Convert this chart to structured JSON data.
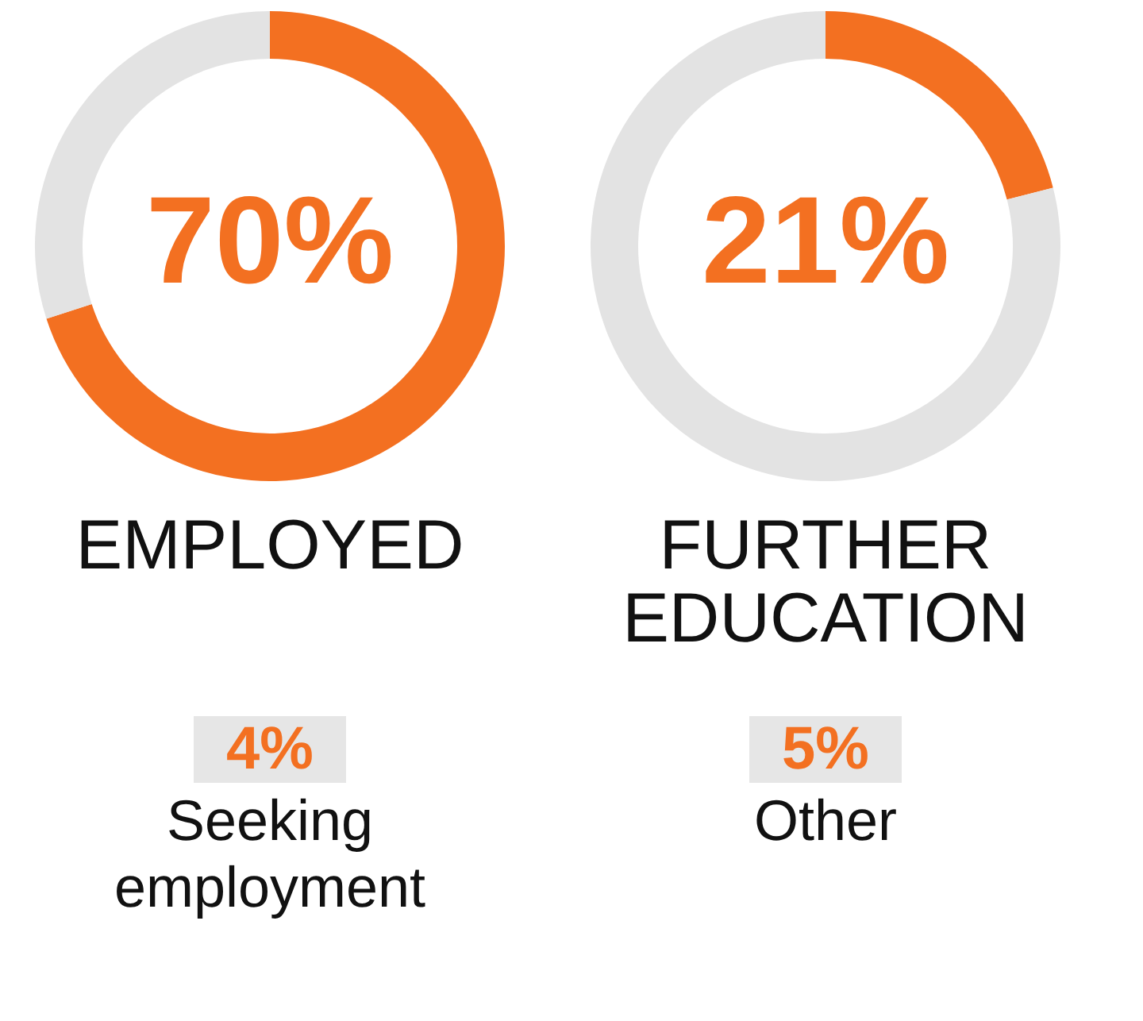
{
  "chart_data": [
    {
      "type": "donut",
      "title": "EMPLOYED",
      "categories": [
        null,
        null
      ],
      "values": [
        70,
        30
      ],
      "colors": [
        "#f37021",
        "#e3e3e3"
      ],
      "value_labels": [
        "70%",
        null
      ]
    },
    {
      "type": "donut",
      "title": "FURTHER EDUCATION",
      "categories": [
        null,
        null
      ],
      "values": [
        21,
        79
      ],
      "colors": [
        "#f37021",
        "#e3e3e3"
      ],
      "value_labels": [
        "21%",
        null
      ]
    },
    {
      "type": "other",
      "annotations": [
        "4%",
        "Seeking employment"
      ]
    },
    {
      "type": "other",
      "annotations": [
        "5%",
        "Other"
      ]
    }
  ]
}
